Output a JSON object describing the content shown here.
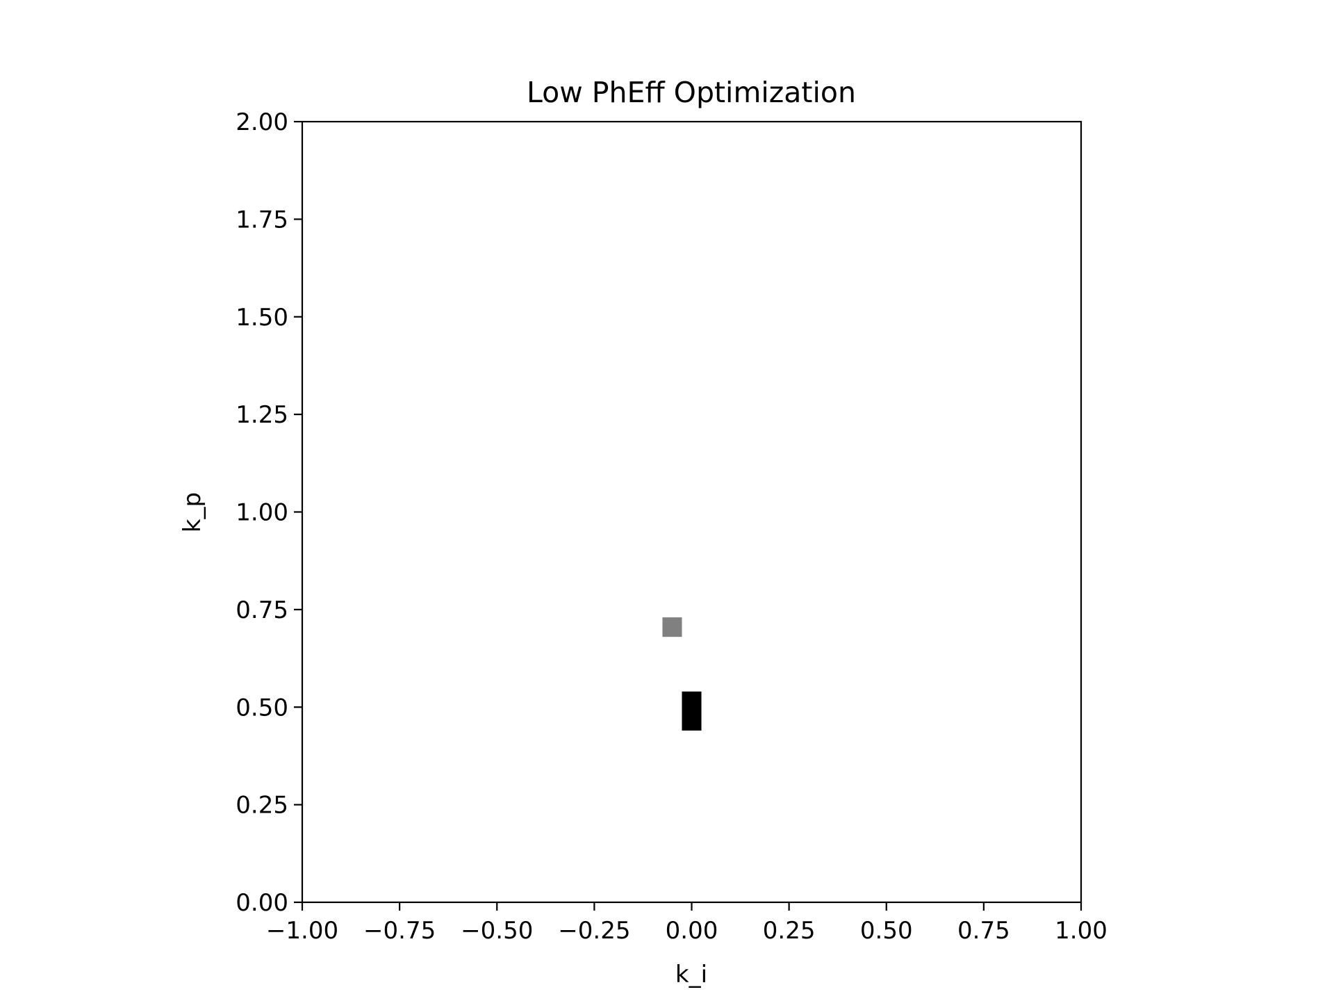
{
  "chart_data": {
    "type": "heatmap",
    "title": "Low PhEff Optimization",
    "xlabel": "k_i",
    "ylabel": "k_p",
    "xlim": [
      -1.0,
      1.0
    ],
    "ylim": [
      0.0,
      2.0
    ],
    "x_ticks": [
      -1.0,
      -0.75,
      -0.5,
      -0.25,
      0.0,
      0.25,
      0.5,
      0.75,
      1.0
    ],
    "x_tick_labels": [
      "−1.00",
      "−0.75",
      "−0.50",
      "−0.25",
      "0.00",
      "0.25",
      "0.50",
      "0.75",
      "1.00"
    ],
    "y_ticks": [
      0.0,
      0.25,
      0.5,
      0.75,
      1.0,
      1.25,
      1.5,
      1.75,
      2.0
    ],
    "y_tick_labels": [
      "0.00",
      "0.25",
      "0.50",
      "0.75",
      "1.00",
      "1.25",
      "1.50",
      "1.75",
      "2.00"
    ],
    "grid": false,
    "colormap": "grayscale (white = low, black = high)",
    "background_value": 0,
    "cells": [
      {
        "x": [
          -0.075,
          -0.025
        ],
        "y": [
          0.68,
          0.73
        ],
        "value": 0.5,
        "color": "#808080"
      },
      {
        "x": [
          -0.025,
          0.025
        ],
        "y": [
          0.44,
          0.54
        ],
        "value": 1.0,
        "color": "#000000"
      }
    ]
  }
}
